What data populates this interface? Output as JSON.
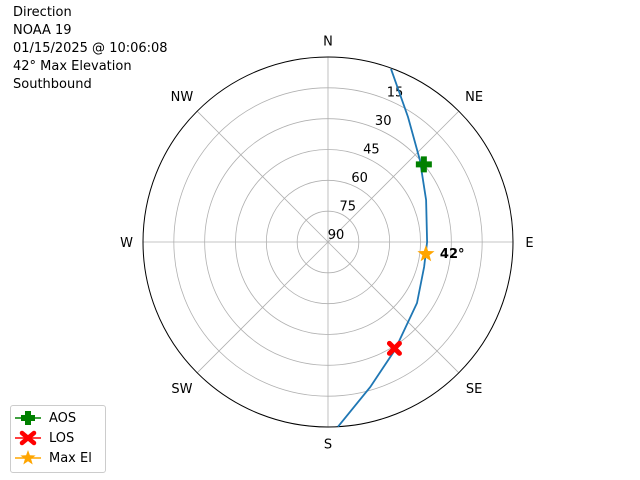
{
  "title_lines": [
    "Direction",
    "NOAA 19",
    "01/15/2025 @ 10:06:08",
    "42° Max Elevation",
    "Southbound"
  ],
  "chart_data": {
    "type": "polar-line",
    "theta_zero": "north",
    "theta_direction": "clockwise",
    "theta_tick_labels": [
      "N",
      "NE",
      "E",
      "SE",
      "S",
      "SW",
      "W",
      "NW"
    ],
    "radial_axis": "elevation (degrees), 90 at center, 0 at edge",
    "radial_tick_labels": [
      "90",
      "75",
      "60",
      "45",
      "30",
      "15"
    ],
    "radial_ticks": [
      90,
      75,
      60,
      45,
      30,
      15
    ],
    "grid": true,
    "series": [
      {
        "type": "line",
        "color": "#1f77b4",
        "azimuth": [
          20.0,
          32.6,
          48.3,
          66.8,
          90.0,
          104.6,
          124.4,
          148.2,
          163.8,
          176.9
        ],
        "elevation": [
          0.4,
          17.8,
          30.1,
          38.1,
          41.8,
          41.7,
          37.5,
          28.2,
          16.5,
          0.0
        ]
      },
      {
        "name": "AOS",
        "type": "marker",
        "marker": "plus",
        "color": "#008000",
        "azimuth": 51,
        "elevation": 30
      },
      {
        "name": "LOS",
        "type": "marker",
        "marker": "x",
        "color": "#ff0000",
        "azimuth": 148,
        "elevation": 29
      },
      {
        "name": "Max El",
        "type": "marker",
        "marker": "star",
        "color": "#ffa500",
        "azimuth": 97,
        "elevation": 42
      }
    ],
    "annotations": [
      {
        "text": "42°",
        "azimuth": 97,
        "elevation": 42
      }
    ],
    "legend": {
      "placement": "lower-left",
      "entries": [
        "AOS",
        "LOS",
        "Max El"
      ]
    }
  }
}
